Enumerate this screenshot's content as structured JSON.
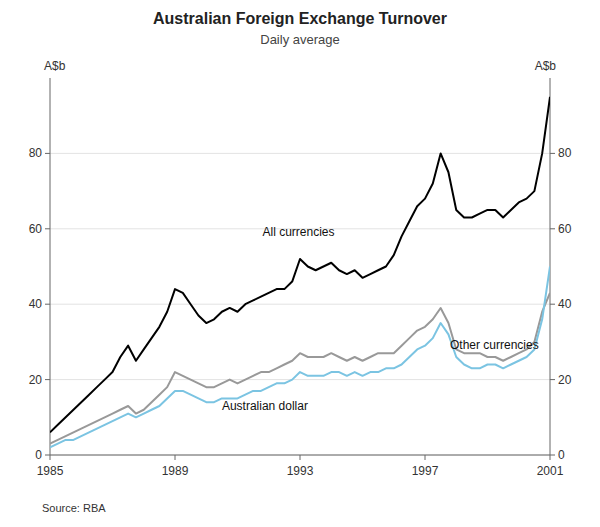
{
  "chart_data": {
    "type": "line",
    "title": "Australian Foreign Exchange Turnover",
    "subtitle": "Daily average",
    "y_label": "A$b",
    "y2_label": "A$b",
    "source": "Source: RBA",
    "x": [
      1985.0,
      1985.25,
      1985.5,
      1985.75,
      1986.0,
      1986.25,
      1986.5,
      1986.75,
      1987.0,
      1987.25,
      1987.5,
      1987.75,
      1988.0,
      1988.25,
      1988.5,
      1988.75,
      1989.0,
      1989.25,
      1989.5,
      1989.75,
      1990.0,
      1990.25,
      1990.5,
      1990.75,
      1991.0,
      1991.25,
      1991.5,
      1991.75,
      1992.0,
      1992.25,
      1992.5,
      1992.75,
      1993.0,
      1993.25,
      1993.5,
      1993.75,
      1994.0,
      1994.25,
      1994.5,
      1994.75,
      1995.0,
      1995.25,
      1995.5,
      1995.75,
      1996.0,
      1996.25,
      1996.5,
      1996.75,
      1997.0,
      1997.25,
      1997.5,
      1997.75,
      1998.0,
      1998.25,
      1998.5,
      1998.75,
      1999.0,
      1999.25,
      1999.5,
      1999.75,
      2000.0,
      2000.25,
      2000.5,
      2000.75,
      2001.0
    ],
    "series": [
      {
        "name": "All currencies",
        "color": "#000000",
        "values": [
          6,
          8,
          10,
          12,
          14,
          16,
          18,
          20,
          22,
          26,
          29,
          25,
          28,
          31,
          34,
          38,
          44,
          43,
          40,
          37,
          35,
          36,
          38,
          39,
          38,
          40,
          41,
          42,
          43,
          44,
          44,
          46,
          52,
          50,
          49,
          50,
          51,
          49,
          48,
          49,
          47,
          48,
          49,
          50,
          53,
          58,
          62,
          66,
          68,
          72,
          80,
          75,
          65,
          63,
          63,
          64,
          65,
          65,
          63,
          65,
          67,
          68,
          70,
          80,
          95
        ]
      },
      {
        "name": "Other currencies",
        "color": "#999999",
        "values": [
          3,
          4,
          5,
          6,
          7,
          8,
          9,
          10,
          11,
          12,
          13,
          11,
          12,
          14,
          16,
          18,
          22,
          21,
          20,
          19,
          18,
          18,
          19,
          20,
          19,
          20,
          21,
          22,
          22,
          23,
          24,
          25,
          27,
          26,
          26,
          26,
          27,
          26,
          25,
          26,
          25,
          26,
          27,
          27,
          27,
          29,
          31,
          33,
          34,
          36,
          39,
          35,
          28,
          27,
          27,
          27,
          26,
          26,
          25,
          26,
          27,
          28,
          30,
          38,
          43
        ]
      },
      {
        "name": "Australian dollar",
        "color": "#7bc4e2",
        "values": [
          2,
          3,
          4,
          4,
          5,
          6,
          7,
          8,
          9,
          10,
          11,
          10,
          11,
          12,
          13,
          15,
          17,
          17,
          16,
          15,
          14,
          14,
          15,
          15,
          15,
          16,
          17,
          17,
          18,
          19,
          19,
          20,
          22,
          21,
          21,
          21,
          22,
          22,
          21,
          22,
          21,
          22,
          22,
          23,
          23,
          24,
          26,
          28,
          29,
          31,
          35,
          32,
          26,
          24,
          23,
          23,
          24,
          24,
          23,
          24,
          25,
          26,
          28,
          36,
          50
        ]
      }
    ],
    "annotations": [
      {
        "text": "All currencies",
        "x": 1991.8,
        "y": 58
      },
      {
        "text": "Australian dollar",
        "x": 1990.5,
        "y": 12
      },
      {
        "text": "Other currencies",
        "x": 1997.8,
        "y": 28
      }
    ],
    "xlim": [
      1985,
      2001
    ],
    "xticks": [
      1985,
      1989,
      1993,
      1997,
      2001
    ],
    "ylim": [
      0,
      100
    ],
    "yticks": [
      0,
      20,
      40,
      60,
      80
    ],
    "y2lim": [
      0,
      100
    ],
    "y2ticks": [
      0,
      20,
      40,
      60,
      80
    ],
    "grid": true
  }
}
